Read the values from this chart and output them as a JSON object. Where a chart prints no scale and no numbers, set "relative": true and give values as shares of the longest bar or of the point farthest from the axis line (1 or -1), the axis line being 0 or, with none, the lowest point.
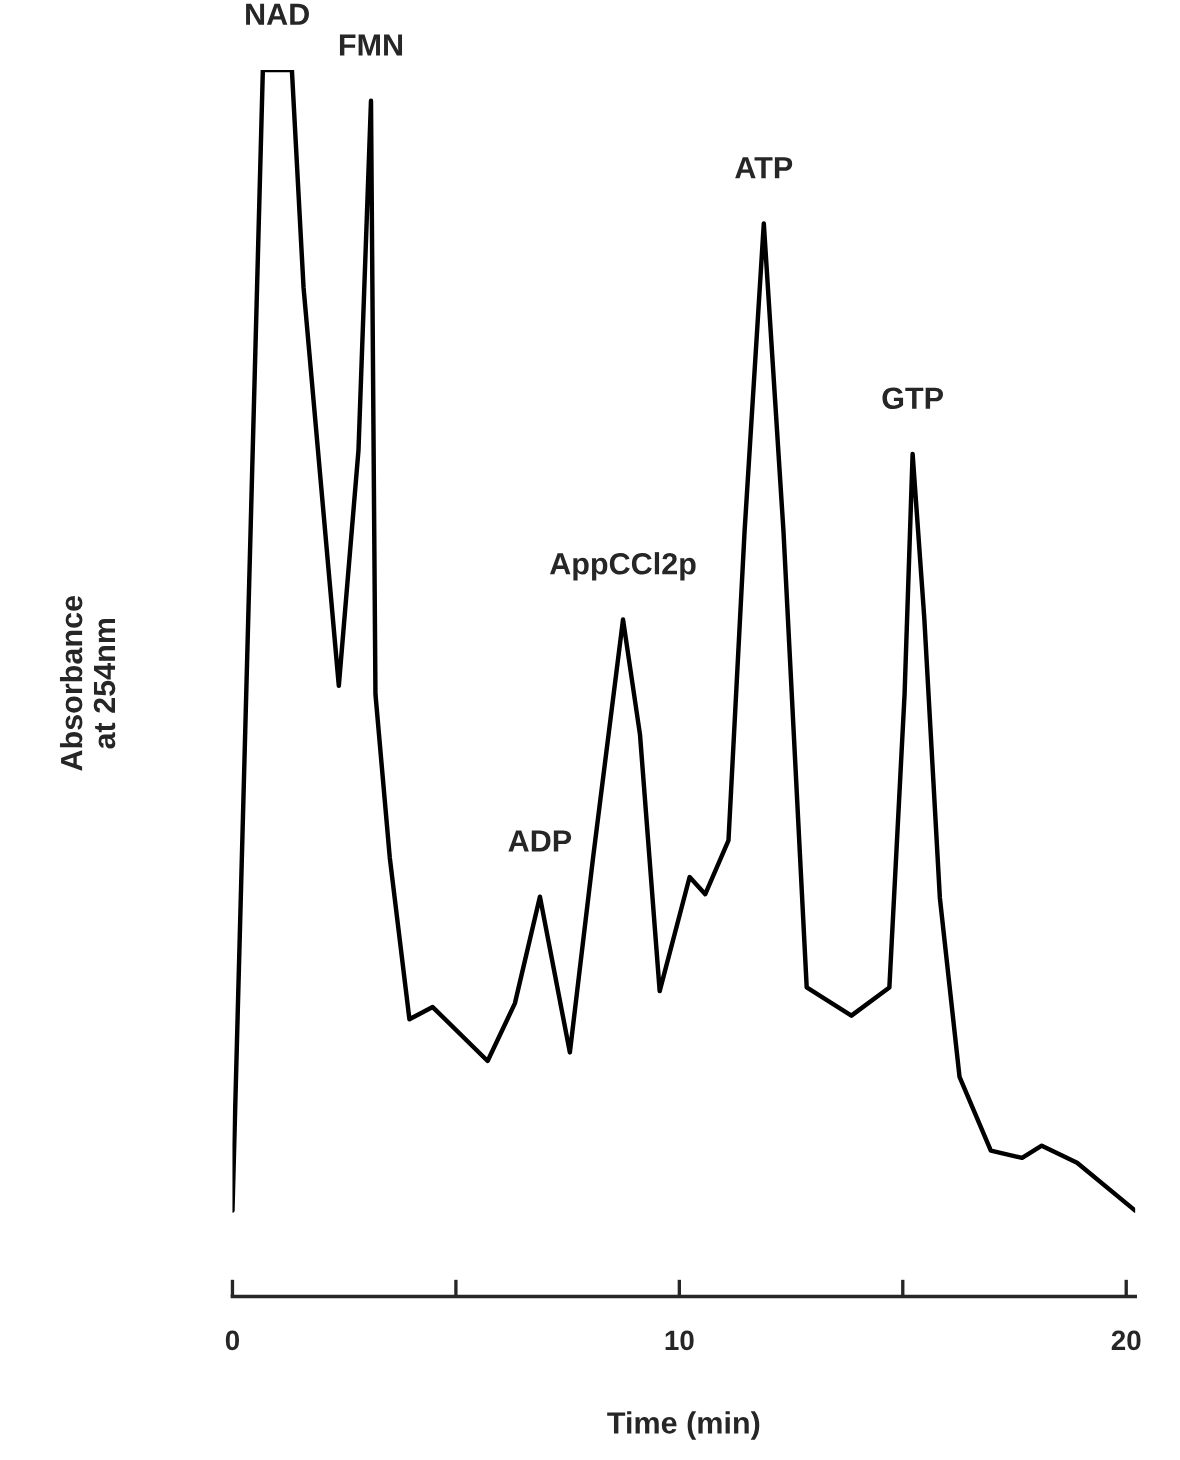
{
  "chart_data": {
    "type": "line",
    "relative": true,
    "xlabel": "Time (min)",
    "ylabel": "Absorbance\nat 254nm",
    "xlim": [
      0,
      20.2
    ],
    "xticks": [
      0,
      {
        "value": 5,
        "label": null
      },
      10,
      {
        "value": 15,
        "label": null
      },
      20
    ],
    "series": [
      {
        "color": "#000000",
        "x": [
          0,
          0.68,
          1.33,
          1.59,
          2.38,
          2.82,
          3.1,
          3.2,
          3.52,
          3.96,
          4.48,
          5.71,
          6.32,
          6.88,
          7.55,
          8.07,
          8.74,
          9.12,
          9.56,
          10.23,
          10.58,
          11.1,
          11.46,
          11.89,
          12.33,
          12.85,
          13.85,
          14.7,
          15.04,
          15.22,
          15.48,
          15.83,
          16.27,
          16.97,
          17.67,
          18.11,
          18.9,
          20.2
        ],
        "values": [
          0.07,
          1.0,
          1.0,
          0.823,
          0.498,
          0.69,
          0.975,
          0.491,
          0.358,
          0.226,
          0.236,
          0.192,
          0.239,
          0.326,
          0.199,
          0.358,
          0.552,
          0.458,
          0.249,
          0.342,
          0.328,
          0.372,
          0.624,
          0.875,
          0.624,
          0.252,
          0.229,
          0.252,
          0.491,
          0.687,
          0.554,
          0.325,
          0.179,
          0.119,
          0.113,
          0.123,
          0.109,
          0.07
        ]
      }
    ],
    "annotations": [
      {
        "text": "NAD",
        "x": 1.0,
        "y": 1.0
      },
      {
        "text": "FMN",
        "x": 3.1,
        "y": 0.975
      },
      {
        "text": "ADP",
        "x": 6.88,
        "y": 0.326
      },
      {
        "text": "AppCCl2p",
        "x": 8.74,
        "y": 0.552
      },
      {
        "text": "ATP",
        "x": 11.89,
        "y": 0.875
      },
      {
        "text": "GTP",
        "x": 15.22,
        "y": 0.687
      }
    ]
  }
}
